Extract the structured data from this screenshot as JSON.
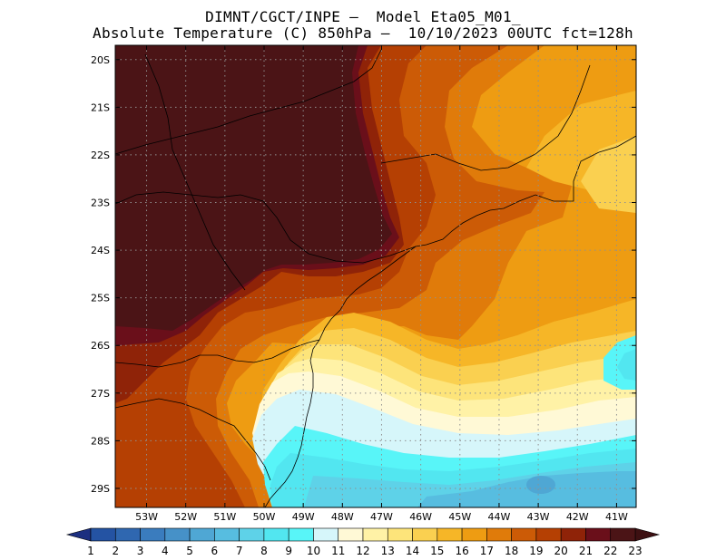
{
  "title": {
    "line1": "DIMNT/CGCT/INPE –  Model Eta05_M01_",
    "line2": "Absolute Temperature (C) 850hPa –  10/10/2023 00UTC fct=128h"
  },
  "map": {
    "lon_range": [
      -53.8,
      -40.5
    ],
    "lat_range": [
      -29.4,
      -19.7
    ],
    "grid": true,
    "lat_ticks": [
      {
        "value": -20,
        "label": "20S"
      },
      {
        "value": -21,
        "label": "21S"
      },
      {
        "value": -22,
        "label": "22S"
      },
      {
        "value": -23,
        "label": "23S"
      },
      {
        "value": -24,
        "label": "24S"
      },
      {
        "value": -25,
        "label": "25S"
      },
      {
        "value": -26,
        "label": "26S"
      },
      {
        "value": -27,
        "label": "27S"
      },
      {
        "value": -28,
        "label": "28S"
      },
      {
        "value": -29,
        "label": "29S"
      }
    ],
    "lon_ticks": [
      {
        "value": -53,
        "label": "53W"
      },
      {
        "value": -52,
        "label": "52W"
      },
      {
        "value": -51,
        "label": "51W"
      },
      {
        "value": -50,
        "label": "50W"
      },
      {
        "value": -49,
        "label": "49W"
      },
      {
        "value": -48,
        "label": "48W"
      },
      {
        "value": -47,
        "label": "47W"
      },
      {
        "value": -46,
        "label": "46W"
      },
      {
        "value": -45,
        "label": "45W"
      },
      {
        "value": -44,
        "label": "44W"
      },
      {
        "value": -43,
        "label": "43W"
      },
      {
        "value": -42,
        "label": "42W"
      },
      {
        "value": -41,
        "label": "41W"
      }
    ]
  },
  "colorbar": {
    "labels": [
      "1",
      "2",
      "3",
      "4",
      "5",
      "6",
      "7",
      "8",
      "9",
      "10",
      "11",
      "12",
      "13",
      "14",
      "15",
      "16",
      "17",
      "18",
      "19",
      "20",
      "21",
      "22",
      "23"
    ],
    "colors": [
      "#1d3f8f",
      "#2453a3",
      "#2f67b0",
      "#3a7cbe",
      "#4691c8",
      "#4fa7d4",
      "#57bde0",
      "#5ed2e8",
      "#52e6f0",
      "#58f5f8",
      "#d6f6fa",
      "#fff9d6",
      "#fff2a6",
      "#fde47a",
      "#fad050",
      "#f6b627",
      "#ee9c12",
      "#e07b0a",
      "#cc5b06",
      "#b54003",
      "#8f2308",
      "#6a0f1a",
      "#4b1416"
    ],
    "low_color": "#1c2f80",
    "high_color": "#3d1012"
  }
}
